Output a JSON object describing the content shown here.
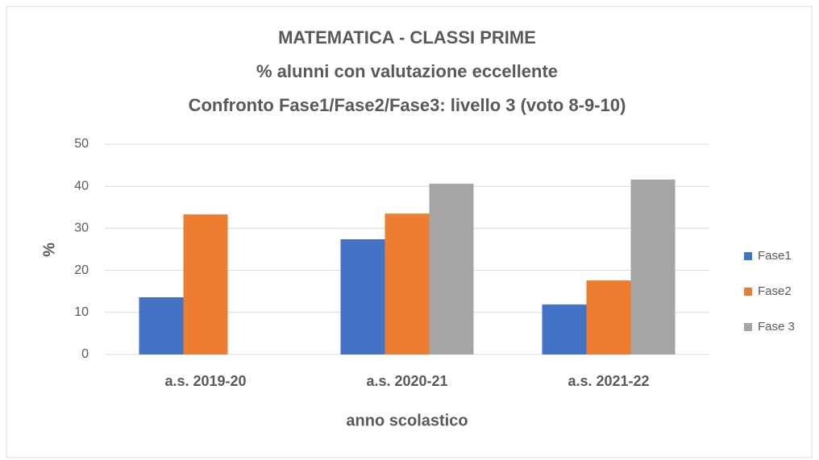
{
  "chart_data": {
    "type": "bar",
    "title": [
      "MATEMATICA - CLASSI PRIME",
      "% alunni con valutazione eccellente",
      "Confronto Fase1/Fase2/Fase3: livello 3 (voto 8-9-10)"
    ],
    "xlabel": "anno scolastico",
    "ylabel": "%",
    "categories": [
      "a.s. 2019-20",
      "a.s. 2020-21",
      "a.s. 2021-22"
    ],
    "series": [
      {
        "name": "Fase1",
        "color": "#4472c4",
        "values": [
          13.6,
          27.4,
          11.9
        ]
      },
      {
        "name": "Fase2",
        "color": "#ed7d31",
        "values": [
          33.3,
          33.5,
          17.6
        ]
      },
      {
        "name": "Fase 3",
        "color": "#a5a5a5",
        "values": [
          null,
          40.6,
          41.6
        ]
      }
    ],
    "ylim": [
      0,
      50
    ],
    "yticks": [
      0,
      10,
      20,
      30,
      40,
      50
    ],
    "grid": true,
    "legend": "right"
  }
}
